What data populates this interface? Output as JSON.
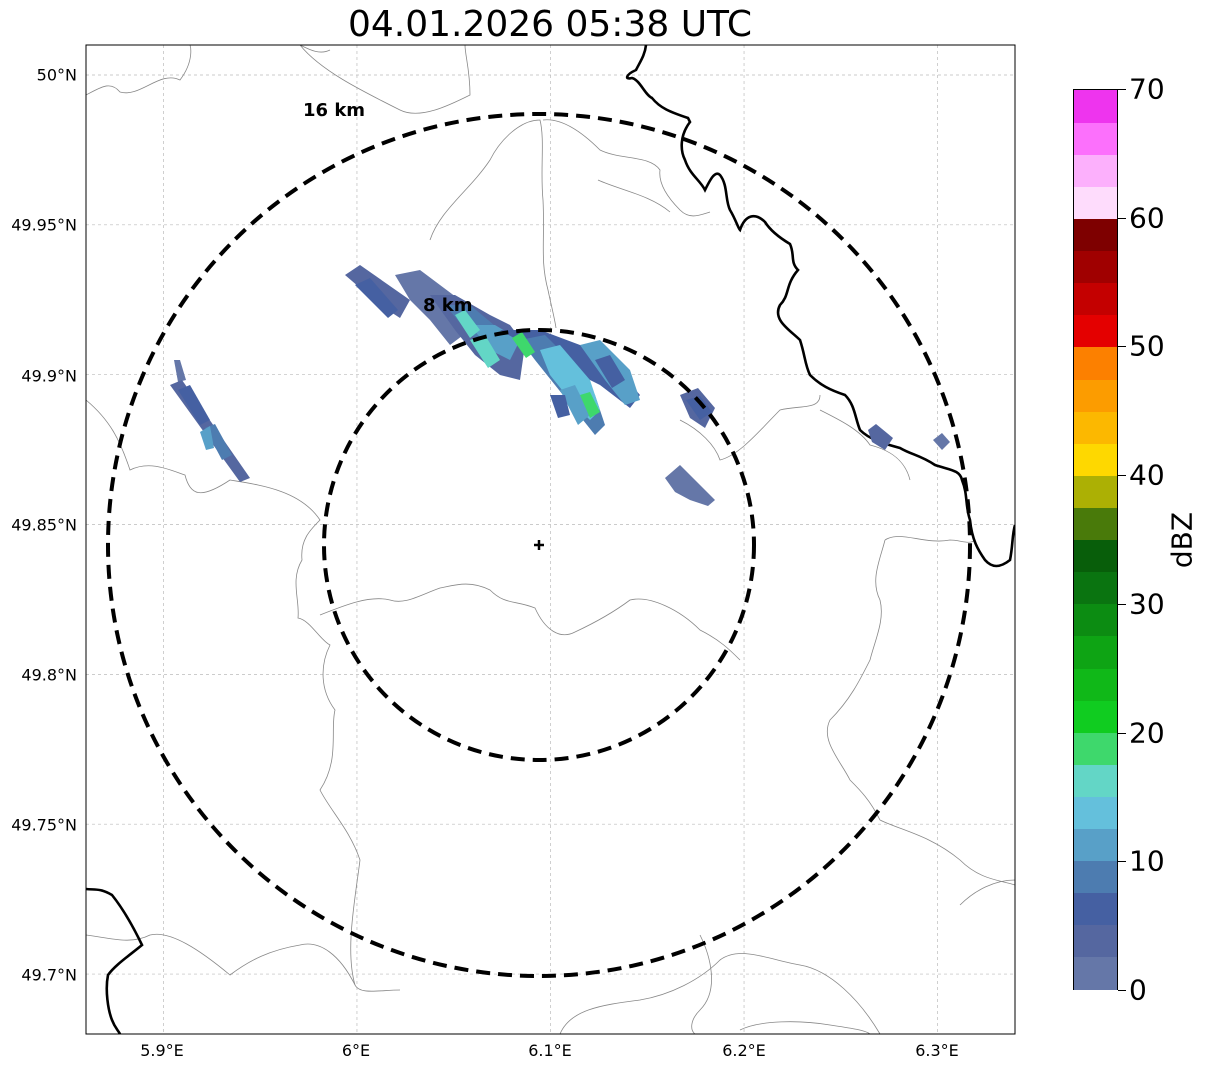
{
  "title": "04.01.2026 05:38 UTC",
  "map": {
    "lat_labels": [
      "50°N",
      "49.95°N",
      "49.9°N",
      "49.85°N",
      "49.8°N",
      "49.75°N",
      "49.7°N"
    ],
    "lon_labels": [
      "5.9°E",
      "6°E",
      "6.1°E",
      "6.2°E",
      "6.3°E"
    ],
    "lat_values": [
      50.0,
      49.95,
      49.9,
      49.85,
      49.8,
      49.75,
      49.7
    ],
    "lon_values": [
      5.9,
      6.0,
      6.1,
      6.2,
      6.3
    ],
    "extent": {
      "lon_min": 5.86,
      "lon_max": 6.34,
      "lat_min": 49.68,
      "lat_max": 50.01
    },
    "radar_site": {
      "lon": 6.096,
      "lat": 49.843
    },
    "range_rings": [
      {
        "label": "8 km",
        "radius_km": 8
      },
      {
        "label": "16 km",
        "radius_km": 16
      }
    ],
    "border_color": "#000000",
    "admin_line_color": "#888888"
  },
  "colorbar": {
    "unit": "dBZ",
    "min": 0,
    "max": 70,
    "tick_labels": [
      "0",
      "10",
      "20",
      "30",
      "40",
      "50",
      "60",
      "70"
    ],
    "colors": [
      "#6577a8",
      "#5567a0",
      "#4560a2",
      "#4d7cb0",
      "#58a0c8",
      "#64c0dc",
      "#63d6c6",
      "#3ed86c",
      "#10cc20",
      "#10b818",
      "#0ea414",
      "#0c8c12",
      "#0a7410",
      "#085e0a",
      "#497a0a",
      "#acb004",
      "#fed800",
      "#fcb800",
      "#fc9c00",
      "#fc8000",
      "#e40000",
      "#c40000",
      "#a00000",
      "#7e0000",
      "#fedcfc",
      "#fcb0fc",
      "#fc70fc",
      "#ee34ee"
    ]
  },
  "echoes": [
    {
      "name": "echo-northwest-band",
      "dbz": 5
    },
    {
      "name": "echo-main-band",
      "dbz": 12
    },
    {
      "name": "echo-main-band-core",
      "dbz": 18
    },
    {
      "name": "echo-east-cell",
      "dbz": 6
    },
    {
      "name": "echo-southeast-cell",
      "dbz": 4
    },
    {
      "name": "echo-far-east-cells",
      "dbz": 5
    }
  ]
}
